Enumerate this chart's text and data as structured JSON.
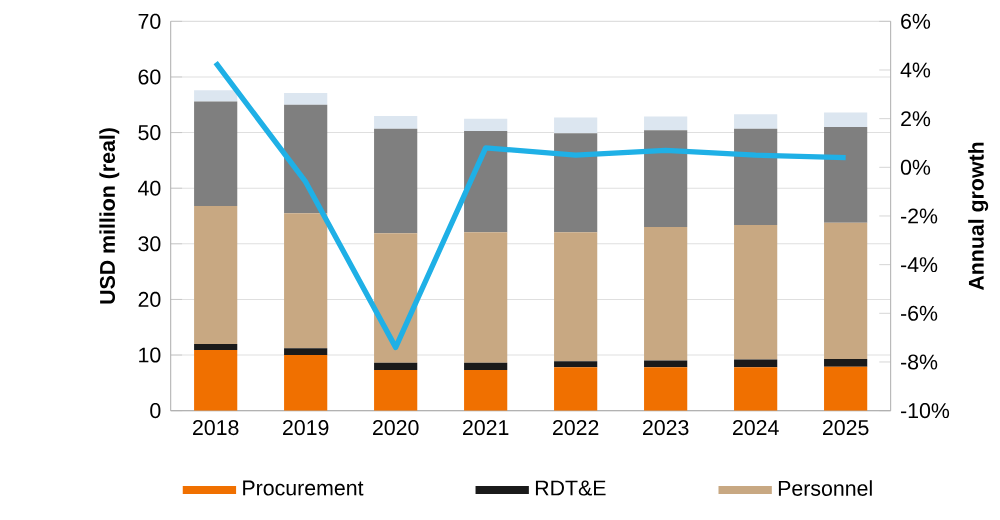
{
  "chart_data": {
    "type": "bar",
    "stacked": true,
    "grid": "y",
    "legend": "bottom",
    "ylabel": "USD million (real)",
    "y2label": "Annual growth",
    "categories": [
      "2018",
      "2019",
      "2020",
      "2021",
      "2022",
      "2023",
      "2024",
      "2025"
    ],
    "ylim": [
      0,
      70
    ],
    "yticks": [
      0,
      10,
      20,
      30,
      40,
      50,
      60,
      70
    ],
    "y2lim": [
      -10,
      6
    ],
    "y2ticks": [
      {
        "value": -10,
        "label": "-10%"
      },
      {
        "value": -8,
        "label": "-8%"
      },
      {
        "value": -6,
        "label": "-6%"
      },
      {
        "value": -4,
        "label": "-4%"
      },
      {
        "value": -2,
        "label": "-2%"
      },
      {
        "value": 0,
        "label": "0%"
      },
      {
        "value": 2,
        "label": "2%"
      },
      {
        "value": 4,
        "label": "4%"
      },
      {
        "value": 6,
        "label": "6%"
      }
    ],
    "series": [
      {
        "name": "Procurement",
        "color": "#f07000",
        "values": [
          10.9,
          10.0,
          7.3,
          7.3,
          7.8,
          7.8,
          7.8,
          7.9
        ]
      },
      {
        "name": "RDT&E",
        "color": "#1a1a1a",
        "values": [
          1.1,
          1.2,
          1.3,
          1.3,
          1.1,
          1.2,
          1.4,
          1.4
        ]
      },
      {
        "name": "Personnel",
        "color": "#c8a882",
        "values": [
          24.8,
          24.3,
          23.3,
          23.5,
          23.2,
          24.0,
          24.2,
          24.5
        ]
      },
      {
        "color": "#7f7f7f",
        "values": [
          18.8,
          19.5,
          18.8,
          18.2,
          17.8,
          17.4,
          17.3,
          17.2
        ]
      },
      {
        "color": "#dce6f0",
        "values": [
          2.0,
          2.1,
          2.3,
          2.2,
          2.8,
          2.5,
          2.6,
          2.6
        ]
      },
      {
        "type": "line",
        "axis": "y2",
        "color": "#1fb0e6",
        "values": [
          4.3,
          -0.6,
          -7.4,
          0.8,
          0.5,
          0.7,
          0.5,
          0.4
        ]
      }
    ]
  }
}
